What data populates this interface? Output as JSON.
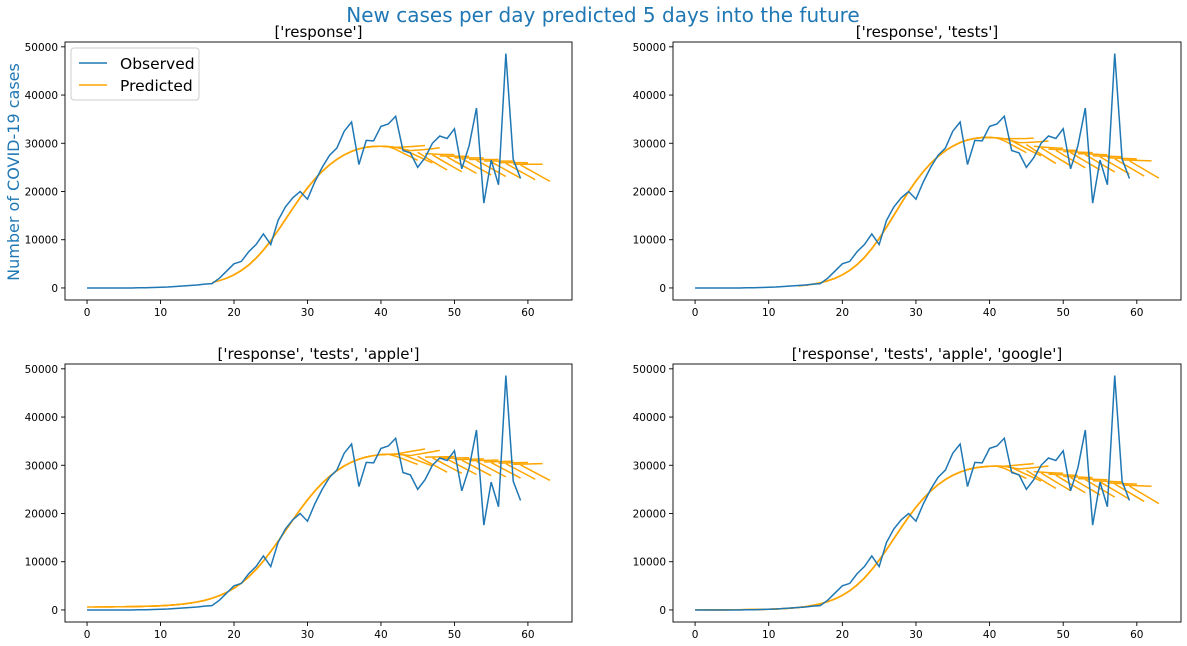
{
  "figure": {
    "suptitle": "New cases per day predicted 5 days into the future",
    "suptitle_color": "#1f77b4",
    "ylabel": "Number of COVID-19 cases",
    "ylabel_color": "#1f77b4"
  },
  "colors": {
    "observed": "#1f77b4",
    "predicted": "#ffa500"
  },
  "chart_data": [
    {
      "type": "line",
      "title": "['response']",
      "xlim": [
        -3,
        66
      ],
      "ylim": [
        -2500,
        51000
      ],
      "xticks": [
        0,
        10,
        20,
        30,
        40,
        50,
        60
      ],
      "yticks": [
        0,
        10000,
        20000,
        30000,
        40000,
        50000
      ],
      "legend": {
        "position": "upper-left",
        "entries": [
          "Observed",
          "Predicted"
        ]
      },
      "observed": {
        "name": "Observed",
        "x": [
          0,
          1,
          2,
          3,
          4,
          5,
          6,
          7,
          8,
          9,
          10,
          11,
          12,
          13,
          14,
          15,
          16,
          17,
          18,
          19,
          20,
          21,
          22,
          23,
          24,
          25,
          26,
          27,
          28,
          29,
          30,
          31,
          32,
          33,
          34,
          35,
          36,
          37,
          38,
          39,
          40,
          41,
          42,
          43,
          44,
          45,
          46,
          47,
          48,
          49,
          50,
          51,
          52,
          53,
          54,
          55,
          56,
          57,
          58,
          59
        ],
        "y": [
          0,
          0,
          0,
          0,
          0,
          0,
          0,
          50,
          50,
          100,
          150,
          200,
          300,
          400,
          500,
          600,
          800,
          900,
          2000,
          3500,
          5000,
          5500,
          7500,
          9000,
          11200,
          9000,
          14000,
          16800,
          18700,
          20000,
          18400,
          22000,
          25000,
          27500,
          29000,
          32500,
          34400,
          25600,
          30600,
          30500,
          33500,
          34000,
          35600,
          28500,
          28000,
          25000,
          27000,
          30000,
          31500,
          31000,
          33000,
          24700,
          29500,
          37300,
          17600,
          26500,
          21400,
          48600,
          26700,
          22700
        ]
      },
      "predicted": {
        "name": "Predicted",
        "params": {
          "start": 17,
          "end": 59,
          "horizon": 5,
          "A": 28300,
          "k": 0.32,
          "x0": 27,
          "bump": 1700,
          "drift": -3300
        }
      }
    },
    {
      "type": "line",
      "title": "['response', 'tests']",
      "xlim": [
        -3,
        66
      ],
      "ylim": [
        -2500,
        51000
      ],
      "xticks": [
        0,
        10,
        20,
        30,
        40,
        50,
        60
      ],
      "yticks": [
        0,
        10000,
        20000,
        30000,
        40000,
        50000
      ],
      "observed": {
        "name": "Observed",
        "x": [
          0,
          1,
          2,
          3,
          4,
          5,
          6,
          7,
          8,
          9,
          10,
          11,
          12,
          13,
          14,
          15,
          16,
          17,
          18,
          19,
          20,
          21,
          22,
          23,
          24,
          25,
          26,
          27,
          28,
          29,
          30,
          31,
          32,
          33,
          34,
          35,
          36,
          37,
          38,
          39,
          40,
          41,
          42,
          43,
          44,
          45,
          46,
          47,
          48,
          49,
          50,
          51,
          52,
          53,
          54,
          55,
          56,
          57,
          58,
          59
        ],
        "y": [
          0,
          0,
          0,
          0,
          0,
          0,
          0,
          50,
          50,
          100,
          150,
          200,
          300,
          400,
          500,
          600,
          800,
          900,
          2000,
          3500,
          5000,
          5500,
          7500,
          9000,
          11200,
          9000,
          14000,
          16800,
          18700,
          20000,
          18400,
          22000,
          25000,
          27500,
          29000,
          32500,
          34400,
          25600,
          30600,
          30500,
          33500,
          34000,
          35600,
          28500,
          28000,
          25000,
          27000,
          30000,
          31500,
          31000,
          33000,
          24700,
          29500,
          37300,
          17600,
          26500,
          21400,
          48600,
          26700,
          22700
        ]
      },
      "predicted": {
        "name": "Predicted",
        "params": {
          "start": 14,
          "end": 59,
          "horizon": 5,
          "A": 30000,
          "k": 0.33,
          "x0": 27,
          "bump": 1800,
          "drift": -4300
        }
      }
    },
    {
      "type": "line",
      "title": "['response', 'tests', 'apple']",
      "xlim": [
        -3,
        66
      ],
      "ylim": [
        -2500,
        51000
      ],
      "xticks": [
        0,
        10,
        20,
        30,
        40,
        50,
        60
      ],
      "yticks": [
        0,
        10000,
        20000,
        30000,
        40000,
        50000
      ],
      "observed": {
        "name": "Observed",
        "x": [
          0,
          1,
          2,
          3,
          4,
          5,
          6,
          7,
          8,
          9,
          10,
          11,
          12,
          13,
          14,
          15,
          16,
          17,
          18,
          19,
          20,
          21,
          22,
          23,
          24,
          25,
          26,
          27,
          28,
          29,
          30,
          31,
          32,
          33,
          34,
          35,
          36,
          37,
          38,
          39,
          40,
          41,
          42,
          43,
          44,
          45,
          46,
          47,
          48,
          49,
          50,
          51,
          52,
          53,
          54,
          55,
          56,
          57,
          58,
          59
        ],
        "y": [
          0,
          0,
          0,
          0,
          0,
          0,
          0,
          50,
          50,
          100,
          150,
          200,
          300,
          400,
          500,
          600,
          800,
          900,
          2000,
          3500,
          5000,
          5500,
          7500,
          9000,
          11200,
          9000,
          14000,
          16800,
          18700,
          20000,
          18400,
          22000,
          25000,
          27500,
          29000,
          32500,
          34400,
          25600,
          30600,
          30500,
          33500,
          34000,
          35600,
          28500,
          28000,
          25000,
          27000,
          30000,
          31500,
          31000,
          33000,
          24700,
          29500,
          37300,
          17600,
          26500,
          21400,
          48600,
          26700,
          22700
        ]
      },
      "predicted": {
        "name": "Predicted",
        "params": {
          "start": 0,
          "end": 59,
          "horizon": 5,
          "A": 31600,
          "k": 0.28,
          "x0": 27,
          "bump": 900,
          "drift": -2500,
          "base": 600
        }
      }
    },
    {
      "type": "line",
      "title": "['response', 'tests', 'apple', 'google']",
      "xlim": [
        -3,
        66
      ],
      "ylim": [
        -2500,
        51000
      ],
      "xticks": [
        0,
        10,
        20,
        30,
        40,
        50,
        60
      ],
      "yticks": [
        0,
        10000,
        20000,
        30000,
        40000,
        50000
      ],
      "observed": {
        "name": "Observed",
        "x": [
          0,
          1,
          2,
          3,
          4,
          5,
          6,
          7,
          8,
          9,
          10,
          11,
          12,
          13,
          14,
          15,
          16,
          17,
          18,
          19,
          20,
          21,
          22,
          23,
          24,
          25,
          26,
          27,
          28,
          29,
          30,
          31,
          32,
          33,
          34,
          35,
          36,
          37,
          38,
          39,
          40,
          41,
          42,
          43,
          44,
          45,
          46,
          47,
          48,
          49,
          50,
          51,
          52,
          53,
          54,
          55,
          56,
          57,
          58,
          59
        ],
        "y": [
          0,
          0,
          0,
          0,
          0,
          0,
          0,
          50,
          50,
          100,
          150,
          200,
          300,
          400,
          500,
          600,
          800,
          900,
          2000,
          3500,
          5000,
          5500,
          7500,
          9000,
          11200,
          9000,
          14000,
          16800,
          18700,
          20000,
          18400,
          22000,
          25000,
          27500,
          29000,
          32500,
          34400,
          25600,
          30600,
          30500,
          33500,
          34000,
          35600,
          28500,
          28000,
          25000,
          27000,
          30000,
          31500,
          31000,
          33000,
          24700,
          29500,
          37300,
          17600,
          26500,
          21400,
          48600,
          26700,
          22700
        ]
      },
      "predicted": {
        "name": "Predicted",
        "params": {
          "start": 0,
          "end": 59,
          "horizon": 5,
          "A": 29500,
          "k": 0.31,
          "x0": 27,
          "bump": 900,
          "drift": -4500
        }
      }
    }
  ]
}
